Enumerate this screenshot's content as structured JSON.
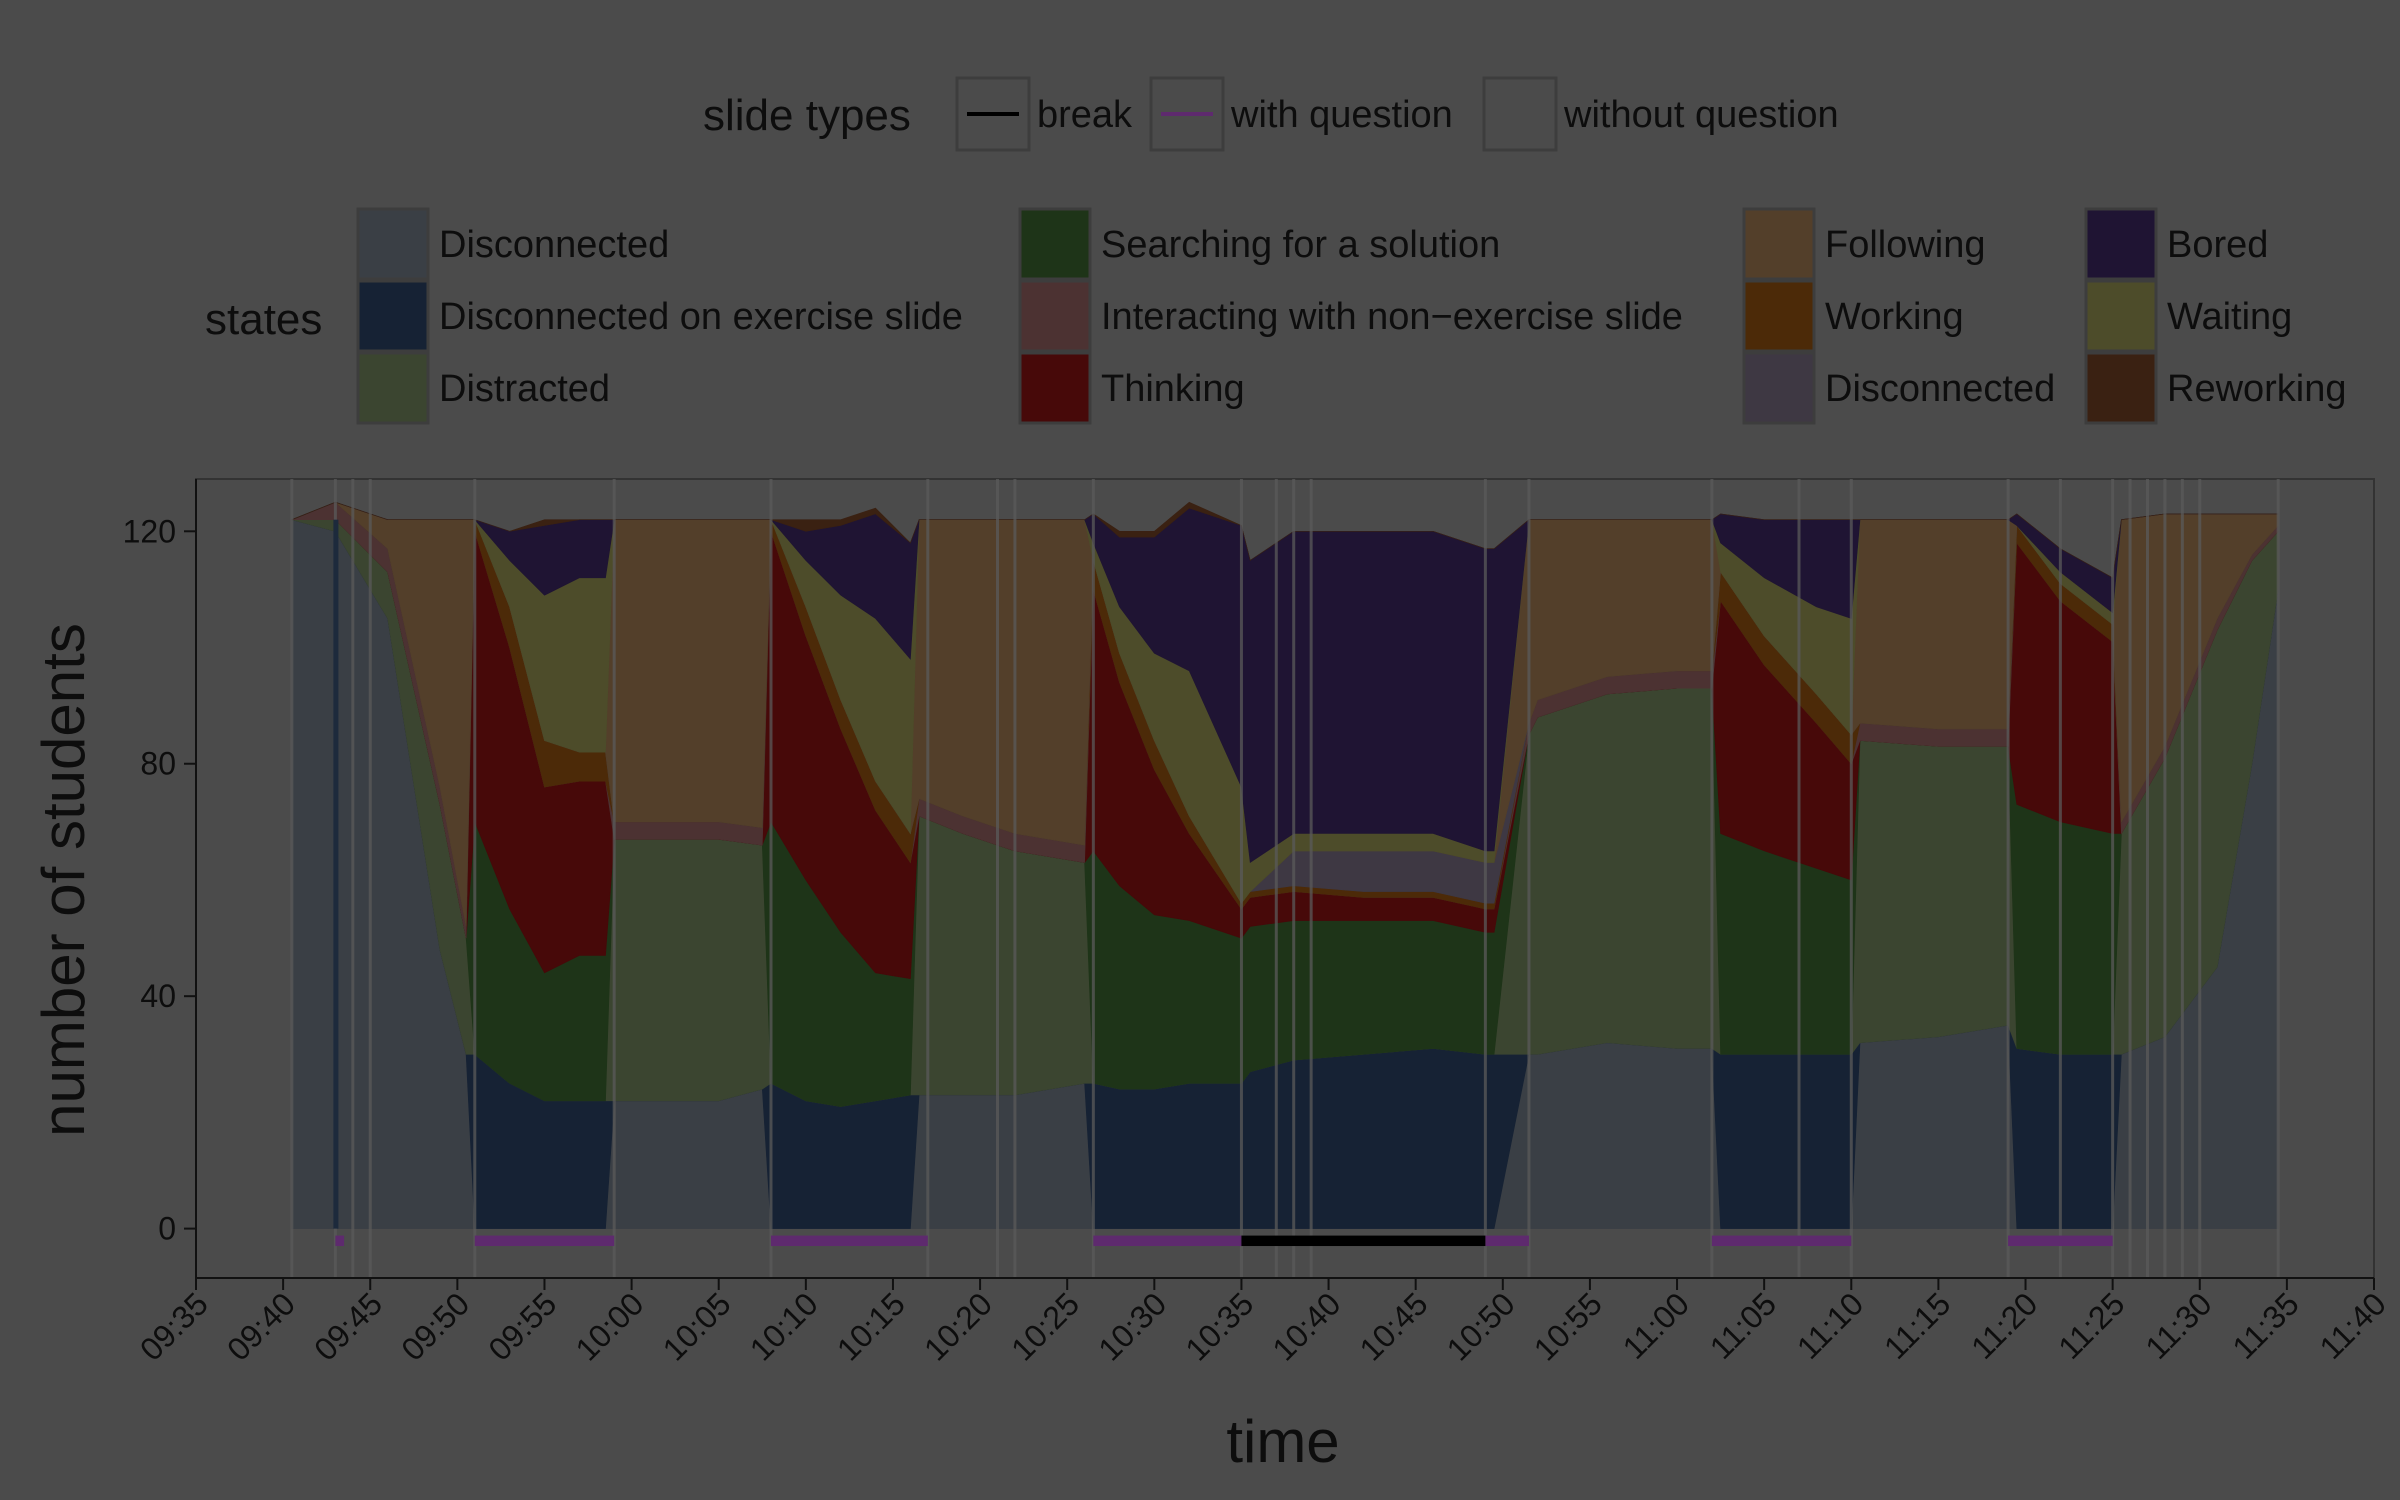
{
  "legend": {
    "slide_types": {
      "title": "slide types",
      "items": [
        {
          "label": "break",
          "color": "#000000",
          "kind": "line"
        },
        {
          "label": "with question",
          "color": "#5e2a6e",
          "kind": "line"
        },
        {
          "label": "without question",
          "color": "#4b4b4b",
          "kind": "box"
        }
      ]
    },
    "states": {
      "title": "states",
      "columns": [
        [
          {
            "label": "Disconnected",
            "color": "#3a3f45"
          },
          {
            "label": "Disconnected on exercise slide",
            "color": "#162234"
          },
          {
            "label": "Distracted",
            "color": "#3b4530"
          }
        ],
        [
          {
            "label": "Searching for a solution",
            "color": "#1e3418"
          },
          {
            "label": "Interacting with non−exercise slide",
            "color": "#4c3232"
          },
          {
            "label": "Thinking",
            "color": "#470909"
          }
        ],
        [
          {
            "label": "Following",
            "color": "#533f2a"
          },
          {
            "label": "Working",
            "color": "#4c2a08"
          },
          {
            "label": "Disconnected",
            "color": "#3e3843"
          }
        ],
        [
          {
            "label": "Bored",
            "color": "#1f1433"
          },
          {
            "label": "Waiting",
            "color": "#4d4c2a"
          },
          {
            "label": "Reworking",
            "color": "#3a2112"
          }
        ]
      ]
    }
  },
  "chart_data": {
    "type": "area",
    "xlabel": "time",
    "ylabel": "number of students",
    "x_ticks": [
      "09:35",
      "09:40",
      "09:45",
      "09:50",
      "09:55",
      "10:00",
      "10:05",
      "10:10",
      "10:15",
      "10:20",
      "10:25",
      "10:30",
      "10:35",
      "10:40",
      "10:45",
      "10:50",
      "10:55",
      "11:00",
      "11:05",
      "11:10",
      "11:15",
      "11:20",
      "11:25",
      "11:30",
      "11:35",
      "11:40"
    ],
    "y_ticks": [
      0,
      40,
      80,
      120
    ],
    "xlim": [
      "09:35",
      "11:40"
    ],
    "ylim": [
      -8.5,
      129
    ],
    "grid": false,
    "stack_order": [
      "Disconnected",
      "Disconnected on exercise slide",
      "Distracted",
      "Searching for a solution",
      "Thinking",
      "Interacting with non−exercise slide",
      "Working",
      "Disconnected (break)",
      "Following",
      "Waiting",
      "Bored",
      "Reworking"
    ],
    "series_colors": [
      "#3a3f45",
      "#162234",
      "#3b4530",
      "#1e3418",
      "#470909",
      "#4c3232",
      "#4c2a08",
      "#3e3843",
      "#533f2a",
      "#4d4c2a",
      "#1f1433",
      "#3a2112"
    ],
    "x": [
      "09:40:30",
      "09:43",
      "09:46",
      "09:49",
      "09:50:30",
      "09:51",
      "09:53",
      "09:55",
      "09:57",
      "09:58:30",
      "09:59",
      "10:02",
      "10:05",
      "10:07:30",
      "10:08",
      "10:10",
      "10:12",
      "10:14",
      "10:16",
      "10:16:30",
      "10:19",
      "10:22",
      "10:26",
      "10:26:30",
      "10:28",
      "10:30",
      "10:32",
      "10:35",
      "10:35:30",
      "10:38",
      "10:42",
      "10:46",
      "10:49",
      "10:49:30",
      "10:51:30",
      "10:52",
      "10:56",
      "11:00",
      "11:02",
      "11:02:30",
      "11:05",
      "11:08",
      "11:10",
      "11:10:30",
      "11:15",
      "11:19",
      "11:19:30",
      "11:22",
      "11:25",
      "11:25:30",
      "11:28",
      "11:31",
      "11:33",
      "11:34:30"
    ],
    "series": [
      {
        "name": "Disconnected",
        "values": [
          122,
          120,
          105,
          48,
          30,
          0,
          0,
          0,
          0,
          0,
          22,
          22,
          22,
          24,
          0,
          0,
          0,
          0,
          0,
          23,
          23,
          23,
          25,
          0,
          0,
          0,
          0,
          0,
          0,
          0,
          0,
          0,
          0,
          0,
          30,
          30,
          32,
          31,
          31,
          0,
          0,
          0,
          0,
          32,
          33,
          35,
          0,
          0,
          0,
          30,
          33,
          45,
          80,
          110
        ]
      },
      {
        "name": "Disconnected on exercise slide",
        "values": [
          0,
          0,
          0,
          0,
          0,
          30,
          25,
          22,
          22,
          22,
          0,
          0,
          0,
          0,
          25,
          22,
          21,
          22,
          23,
          0,
          0,
          0,
          0,
          25,
          24,
          24,
          25,
          25,
          27,
          29,
          30,
          31,
          30,
          30,
          0,
          0,
          0,
          0,
          0,
          30,
          30,
          30,
          30,
          0,
          0,
          0,
          31,
          30,
          30,
          0,
          0,
          0,
          0,
          0
        ]
      },
      {
        "name": "Distracted",
        "values": [
          0,
          2,
          8,
          25,
          20,
          0,
          0,
          0,
          0,
          0,
          45,
          45,
          45,
          42,
          0,
          0,
          0,
          0,
          0,
          48,
          45,
          42,
          38,
          0,
          0,
          0,
          0,
          0,
          0,
          0,
          0,
          0,
          0,
          0,
          55,
          58,
          60,
          62,
          62,
          0,
          0,
          0,
          0,
          52,
          50,
          48,
          0,
          0,
          0,
          38,
          48,
          58,
          35,
          10
        ]
      },
      {
        "name": "Searching for a solution",
        "values": [
          0,
          0,
          0,
          0,
          0,
          40,
          30,
          22,
          25,
          25,
          0,
          0,
          0,
          0,
          45,
          38,
          30,
          22,
          20,
          0,
          0,
          0,
          0,
          40,
          35,
          30,
          28,
          25,
          25,
          24,
          23,
          22,
          21,
          21,
          0,
          0,
          0,
          0,
          0,
          38,
          35,
          32,
          30,
          0,
          0,
          0,
          42,
          40,
          38,
          0,
          0,
          0,
          0,
          0
        ]
      },
      {
        "name": "Thinking",
        "values": [
          0,
          0,
          0,
          0,
          0,
          50,
          45,
          32,
          30,
          30,
          0,
          0,
          0,
          0,
          50,
          42,
          35,
          28,
          20,
          0,
          0,
          0,
          0,
          45,
          35,
          25,
          15,
          5,
          5,
          5,
          4,
          4,
          4,
          4,
          0,
          0,
          0,
          0,
          0,
          40,
          32,
          25,
          20,
          0,
          0,
          0,
          45,
          38,
          33,
          0,
          0,
          0,
          0,
          0
        ]
      },
      {
        "name": "Interacting with non−exercise slide",
        "values": [
          0,
          3,
          4,
          3,
          2,
          0,
          0,
          0,
          0,
          0,
          3,
          3,
          3,
          3,
          0,
          0,
          0,
          0,
          0,
          3,
          3,
          3,
          3,
          0,
          0,
          0,
          0,
          0,
          0,
          0,
          0,
          0,
          0,
          0,
          2,
          3,
          3,
          3,
          3,
          0,
          0,
          0,
          0,
          3,
          3,
          3,
          0,
          0,
          0,
          2,
          2,
          2,
          1,
          1
        ]
      },
      {
        "name": "Working",
        "values": [
          0,
          0,
          0,
          0,
          0,
          2,
          7,
          8,
          5,
          5,
          0,
          0,
          0,
          0,
          2,
          5,
          5,
          5,
          5,
          0,
          0,
          0,
          0,
          5,
          5,
          5,
          3,
          1,
          1,
          1,
          1,
          1,
          1,
          1,
          0,
          0,
          0,
          0,
          0,
          5,
          5,
          5,
          5,
          0,
          0,
          0,
          3,
          3,
          3,
          0,
          0,
          0,
          0,
          0
        ]
      },
      {
        "name": "Disconnected (break)",
        "values": [
          0,
          0,
          0,
          0,
          0,
          0,
          0,
          0,
          0,
          0,
          0,
          0,
          0,
          0,
          0,
          0,
          0,
          0,
          0,
          0,
          0,
          0,
          0,
          0,
          0,
          0,
          0,
          0,
          0,
          6,
          7,
          7,
          7,
          7,
          0,
          0,
          0,
          0,
          0,
          0,
          0,
          0,
          0,
          0,
          0,
          0,
          0,
          0,
          0,
          0,
          0,
          0,
          0,
          0
        ]
      },
      {
        "name": "Following",
        "values": [
          0,
          0,
          5,
          46,
          70,
          0,
          0,
          0,
          0,
          0,
          52,
          52,
          52,
          53,
          0,
          0,
          0,
          0,
          0,
          48,
          51,
          54,
          56,
          0,
          0,
          0,
          0,
          0,
          0,
          0,
          0,
          0,
          0,
          0,
          35,
          31,
          27,
          26,
          26,
          0,
          0,
          0,
          0,
          35,
          36,
          36,
          0,
          0,
          0,
          52,
          40,
          18,
          7,
          2
        ]
      },
      {
        "name": "Waiting",
        "values": [
          0,
          0,
          0,
          0,
          0,
          0,
          8,
          25,
          30,
          30,
          0,
          0,
          0,
          0,
          0,
          8,
          18,
          28,
          30,
          0,
          0,
          0,
          0,
          3,
          8,
          15,
          25,
          20,
          5,
          3,
          3,
          3,
          2,
          2,
          0,
          0,
          0,
          0,
          0,
          5,
          10,
          15,
          20,
          0,
          0,
          0,
          0,
          2,
          2,
          0,
          0,
          0,
          0,
          0
        ]
      },
      {
        "name": "Bored",
        "values": [
          0,
          0,
          0,
          0,
          0,
          0,
          5,
          12,
          10,
          10,
          0,
          0,
          0,
          0,
          0,
          5,
          12,
          18,
          20,
          0,
          0,
          0,
          0,
          5,
          12,
          20,
          28,
          45,
          52,
          52,
          52,
          52,
          52,
          52,
          0,
          0,
          0,
          0,
          0,
          5,
          10,
          15,
          17,
          0,
          0,
          0,
          2,
          4,
          6,
          0,
          0,
          0,
          0,
          0
        ]
      },
      {
        "name": "Reworking",
        "values": [
          0,
          0,
          0,
          0,
          0,
          0,
          0,
          1,
          0,
          0,
          0,
          0,
          0,
          0,
          0,
          2,
          1,
          1,
          0,
          0,
          0,
          0,
          0,
          0,
          1,
          1,
          1,
          0,
          0,
          0,
          0,
          0,
          0,
          0,
          0,
          0,
          0,
          0,
          0,
          0,
          0,
          0,
          0,
          0,
          0,
          0,
          0,
          0,
          0,
          0,
          0,
          0,
          0,
          0
        ]
      }
    ],
    "slide_markers": {
      "with_question": [
        [
          "09:43",
          "09:43:30"
        ],
        [
          "09:51",
          "09:59"
        ],
        [
          "10:08",
          "10:17"
        ],
        [
          "10:26:30",
          "10:35"
        ],
        [
          "10:49",
          "10:51:30"
        ],
        [
          "11:02",
          "11:10"
        ],
        [
          "11:19",
          "11:25"
        ]
      ],
      "break": [
        [
          "10:35",
          "10:49"
        ]
      ]
    },
    "slide_boundaries": [
      "09:40:30",
      "09:43",
      "09:44",
      "09:45",
      "09:51",
      "09:59",
      "10:08",
      "10:17",
      "10:21",
      "10:22",
      "10:26:30",
      "10:35",
      "10:37",
      "10:38",
      "10:39",
      "10:49",
      "10:51:30",
      "11:02",
      "11:07",
      "11:10",
      "11:19",
      "11:22",
      "11:25",
      "11:26",
      "11:27",
      "11:28",
      "11:29",
      "11:30",
      "11:34:30"
    ]
  }
}
